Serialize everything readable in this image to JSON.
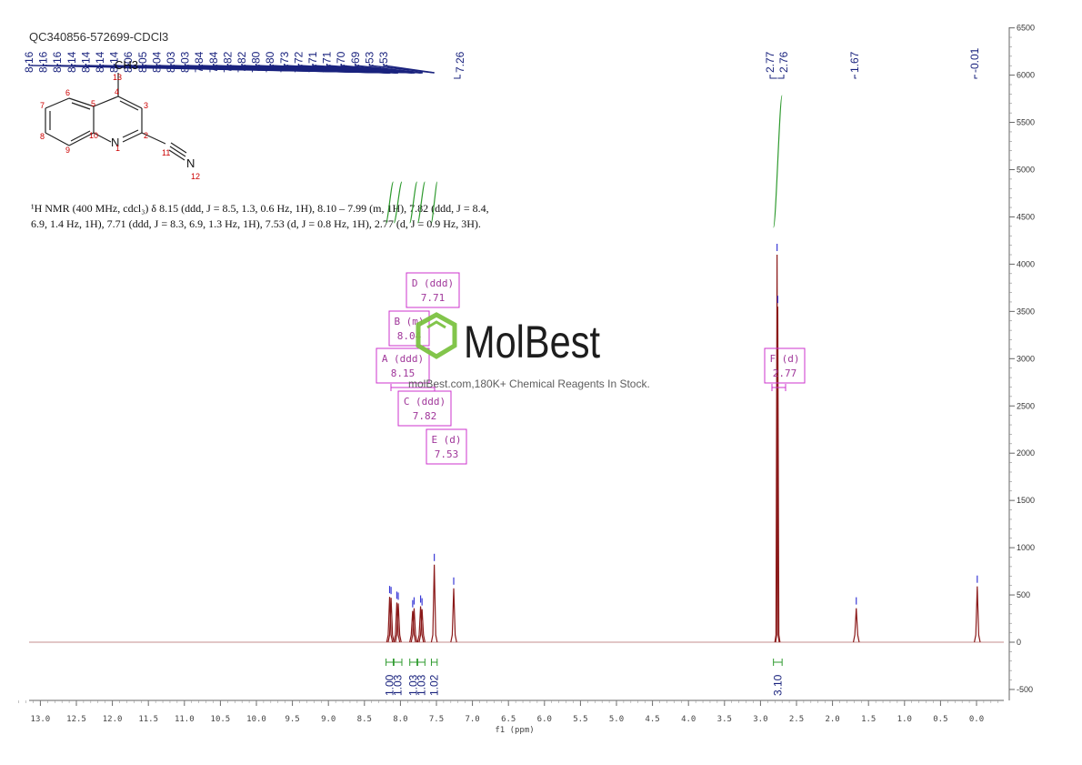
{
  "sample_id": "QC340856-572699-CDCl3",
  "nmr_description": {
    "line1": "¹H NMR (400 MHz, cdcl₃) δ 8.15 (ddd, J = 8.5, 1.3, 0.6 Hz, 1H), 8.10 – 7.99 (m, 1H), 7.82 (ddd, J = 8.4,",
    "line2": "6.9, 1.4 Hz, 1H), 7.71 (ddd, J = 8.3, 6.9, 1.3 Hz, 1H), 7.53 (d, J = 0.8 Hz, 1H), 2.77 (d, J = 0.9 Hz, 3H)."
  },
  "watermark": {
    "logo": "MolBest",
    "tagline": "molBest.com,180K+ Chemical Reagents In Stock."
  },
  "structure": {
    "atom_numbers": [
      "1",
      "2",
      "3",
      "4",
      "5",
      "6",
      "7",
      "8",
      "9",
      "10",
      "11",
      "12",
      "13"
    ],
    "methyl": "CH3",
    "ring_n": "N",
    "nitrile_n": "N"
  },
  "colors": {
    "spectrum": "#8b1a1a",
    "peak_label": "#1a237e",
    "integral": "#2e9a2e",
    "multiplet_box": "#cc33cc",
    "logo_ring": "#7cc242"
  },
  "chart_data": {
    "type": "line",
    "x_axis_title": "f1 (ppm)",
    "xlim": [
      13.4,
      -0.4
    ],
    "ylim": [
      -650,
      6500
    ],
    "x_ticks": [
      "13.0",
      "12.5",
      "12.0",
      "11.5",
      "11.0",
      "10.5",
      "10.0",
      "9.5",
      "9.0",
      "8.5",
      "8.0",
      "7.5",
      "7.0",
      "6.5",
      "6.0",
      "5.5",
      "5.0",
      "4.5",
      "4.0",
      "3.5",
      "3.0",
      "2.5",
      "2.0",
      "1.5",
      "1.0",
      "0.5",
      "0.0"
    ],
    "y_ticks": [
      "-500",
      "0",
      "500",
      "1000",
      "1500",
      "2000",
      "2500",
      "3000",
      "3500",
      "4000",
      "4500",
      "5000",
      "5500",
      "6000",
      "6500"
    ],
    "peak_labels": [
      "8.16",
      "8.16",
      "8.16",
      "8.14",
      "8.14",
      "8.14",
      "8.14",
      "8.06",
      "8.05",
      "8.04",
      "8.03",
      "8.03",
      "7.84",
      "7.84",
      "7.82",
      "7.82",
      "7.80",
      "7.80",
      "7.73",
      "7.72",
      "7.71",
      "7.71",
      "7.70",
      "7.69",
      "7.53",
      "7.53",
      "7.26",
      "2.77",
      "2.76",
      "1.67",
      "-0.01"
    ],
    "peaks": [
      {
        "ppm": 8.15,
        "height": 480
      },
      {
        "ppm": 8.13,
        "height": 470
      },
      {
        "ppm": 8.05,
        "height": 420
      },
      {
        "ppm": 8.03,
        "height": 410
      },
      {
        "ppm": 7.83,
        "height": 330
      },
      {
        "ppm": 7.81,
        "height": 360
      },
      {
        "ppm": 7.72,
        "height": 380
      },
      {
        "ppm": 7.7,
        "height": 350
      },
      {
        "ppm": 7.53,
        "height": 820
      },
      {
        "ppm": 7.26,
        "height": 570
      },
      {
        "ppm": 2.77,
        "height": 4100
      },
      {
        "ppm": 2.76,
        "height": 3550
      },
      {
        "ppm": 1.67,
        "height": 360
      },
      {
        "ppm": -0.01,
        "height": 590
      }
    ],
    "integrals": [
      {
        "label": "1.00",
        "from": 8.2,
        "to": 8.1
      },
      {
        "label": "1.03",
        "from": 8.09,
        "to": 7.98
      },
      {
        "label": "1.03",
        "from": 7.87,
        "to": 7.77
      },
      {
        "label": "1.03",
        "from": 7.76,
        "to": 7.66
      },
      {
        "label": "1.02",
        "from": 7.57,
        "to": 7.49
      },
      {
        "label": "3.10",
        "from": 2.82,
        "to": 2.7
      }
    ],
    "multiplets": [
      {
        "name": "D",
        "mult": "(ddd)",
        "shift": "7.71"
      },
      {
        "name": "B",
        "mult": "(m)",
        "shift": "8.04"
      },
      {
        "name": "A",
        "mult": "(ddd)",
        "shift": "8.15"
      },
      {
        "name": "C",
        "mult": "(ddd)",
        "shift": "7.82"
      },
      {
        "name": "E",
        "mult": "(d)",
        "shift": "7.53"
      },
      {
        "name": "F",
        "mult": "(d)",
        "shift": "2.77"
      }
    ]
  }
}
